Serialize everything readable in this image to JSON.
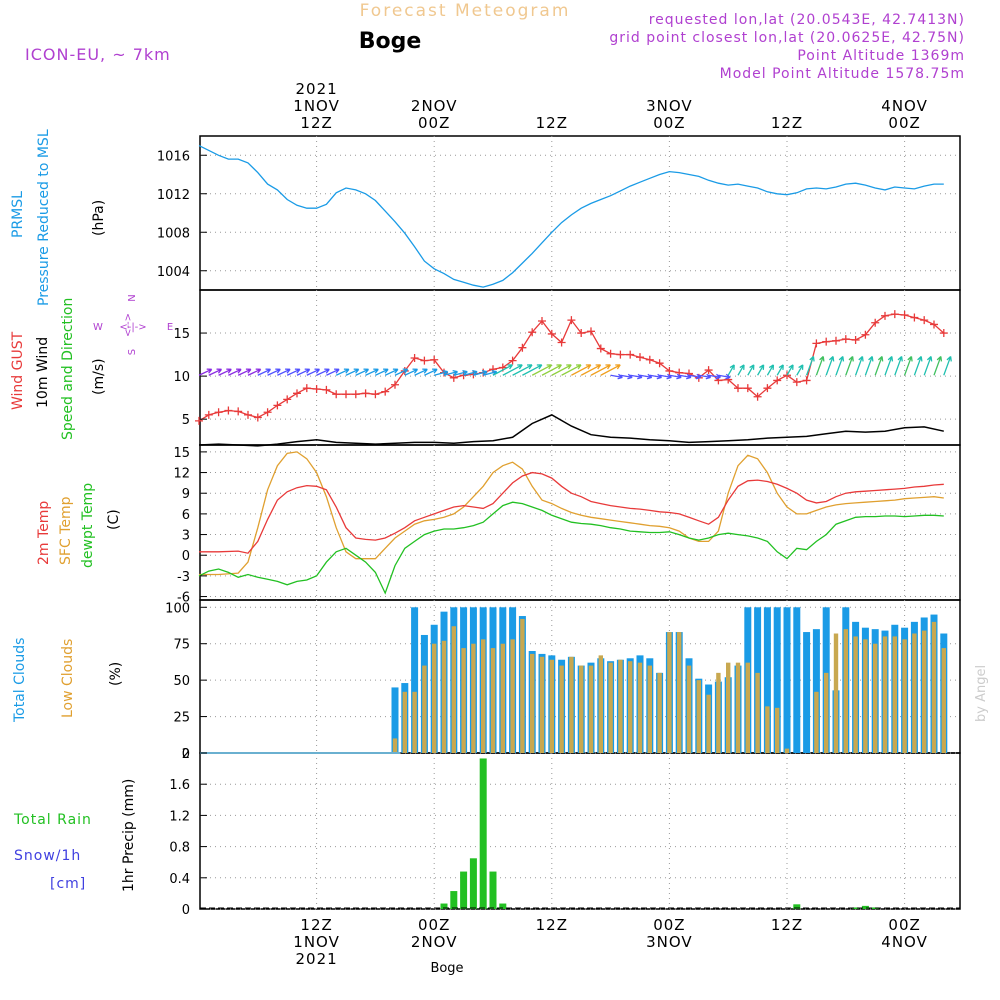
{
  "header": {
    "title": "Forecast Meteogram",
    "location": "Boge",
    "model": "ICON-EU, ~ 7km",
    "requested": "requested lon,lat (20.0543E, 42.7413N)",
    "grid_point": "grid point closest lon,lat (20.0625E, 42.75N)",
    "point_altitude": "Point Altitude 1369m",
    "model_altitude": "Model Point Altitude 1578.75m"
  },
  "footer": {
    "location": "Boge",
    "watermark": "by Angel"
  },
  "time_axis": {
    "top_labels": [
      {
        "hour": 12,
        "lines": [
          "2021",
          "1NOV",
          "12Z"
        ]
      },
      {
        "hour": 24,
        "lines": [
          "2NOV",
          "00Z"
        ]
      },
      {
        "hour": 36,
        "lines": [
          "12Z"
        ]
      },
      {
        "hour": 48,
        "lines": [
          "3NOV",
          "00Z"
        ]
      },
      {
        "hour": 60,
        "lines": [
          "12Z"
        ]
      },
      {
        "hour": 72,
        "lines": [
          "4NOV",
          "00Z"
        ]
      }
    ],
    "bottom_labels": [
      {
        "hour": 12,
        "lines": [
          "12Z",
          "1NOV",
          "2021"
        ]
      },
      {
        "hour": 24,
        "lines": [
          "00Z",
          "2NOV"
        ]
      },
      {
        "hour": 36,
        "lines": [
          "12Z"
        ]
      },
      {
        "hour": 48,
        "lines": [
          "00Z",
          "3NOV"
        ]
      },
      {
        "hour": 60,
        "lines": [
          "12Z"
        ]
      },
      {
        "hour": 72,
        "lines": [
          "00Z",
          "4NOV"
        ]
      }
    ]
  },
  "panels": {
    "pressure": {
      "label1": "PRMSL",
      "label2": "Pressure Reduced to MSL",
      "unit": "(hPa)"
    },
    "wind": {
      "label_gust": "Wind GUST",
      "label_wind": "10m Wind",
      "label_dir": "Speed and Direction",
      "unit": "(m/s)",
      "compass": {
        "n": "N",
        "s": "S",
        "w": "W",
        "e": "E"
      }
    },
    "temp": {
      "label1": "2m Temp",
      "label2": "SFC Temp",
      "label3": "dewpt Temp",
      "unit": "(C)"
    },
    "clouds": {
      "label1": "Total Clouds",
      "label2": "Low Clouds",
      "unit": "(%)"
    },
    "precip": {
      "label_rain": "Total Rain",
      "label_snow": "Snow/1h",
      "label_snow_unit": "[cm]",
      "unit": "1hr Precip (mm)"
    }
  },
  "colors": {
    "pressure": "#1a9be6",
    "gust": "#e83a3a",
    "wind": "#000000",
    "temp2m": "#e83a3a",
    "sfc": "#e0a030",
    "dewpt": "#22c022",
    "total_clouds": "#1a9be6",
    "low_clouds": "#c8a850",
    "precip": "#22c022",
    "title": "#f0c890",
    "meta": "#b040d0",
    "snow": "#4040e0"
  },
  "chart_data": [
    {
      "type": "line",
      "name": "pressure",
      "x": [
        0,
        1,
        2,
        3,
        4,
        5,
        6,
        7,
        8,
        9,
        10,
        11,
        12,
        13,
        14,
        15,
        16,
        17,
        18,
        19,
        20,
        21,
        22,
        23,
        24,
        25,
        26,
        27,
        28,
        29,
        30,
        31,
        32,
        33,
        34,
        35,
        36,
        37,
        38,
        39,
        40,
        41,
        42,
        43,
        44,
        45,
        46,
        47,
        48,
        49,
        50,
        51,
        52,
        53,
        54,
        55,
        56,
        57,
        58,
        59,
        60,
        61,
        62,
        63,
        64,
        65,
        66,
        67,
        68,
        69,
        70,
        71,
        72,
        73,
        74,
        75,
        76
      ],
      "values": [
        1017.0,
        1016.5,
        1016.0,
        1015.6,
        1015.6,
        1015.2,
        1014.2,
        1013.0,
        1012.4,
        1011.4,
        1010.8,
        1010.5,
        1010.5,
        1010.9,
        1012.1,
        1012.6,
        1012.4,
        1012.0,
        1011.3,
        1010.2,
        1009.1,
        1007.9,
        1006.5,
        1005.0,
        1004.2,
        1003.7,
        1003.1,
        1002.8,
        1002.5,
        1002.3,
        1002.6,
        1003.0,
        1003.8,
        1004.8,
        1005.8,
        1006.9,
        1008.0,
        1009.0,
        1009.8,
        1010.5,
        1011.0,
        1011.4,
        1011.8,
        1012.3,
        1012.8,
        1013.2,
        1013.6,
        1014.0,
        1014.3,
        1014.2,
        1014.0,
        1013.8,
        1013.4,
        1013.1,
        1012.9,
        1013.0,
        1012.8,
        1012.6,
        1012.2,
        1012.0,
        1011.9,
        1012.1,
        1012.5,
        1012.6,
        1012.5,
        1012.7,
        1013.0,
        1013.1,
        1012.9,
        1012.6,
        1012.4,
        1012.7,
        1012.6,
        1012.5,
        1012.8,
        1013.0,
        1013.0
      ],
      "ylim": [
        1002,
        1018
      ],
      "yticks": [
        1004,
        1008,
        1012,
        1016
      ]
    },
    {
      "type": "line",
      "name": "gust",
      "x": [
        0,
        1,
        2,
        3,
        4,
        5,
        6,
        7,
        8,
        9,
        10,
        11,
        12,
        13,
        14,
        15,
        16,
        17,
        18,
        19,
        20,
        21,
        22,
        23,
        24,
        25,
        26,
        27,
        28,
        29,
        30,
        31,
        32,
        33,
        34,
        35,
        36,
        37,
        38,
        39,
        40,
        41,
        42,
        43,
        44,
        45,
        46,
        47,
        48,
        49,
        50,
        51,
        52,
        53,
        54,
        55,
        56,
        57,
        58,
        59,
        60,
        61,
        62,
        63,
        64,
        65,
        66,
        67,
        68,
        69,
        70,
        71,
        72,
        73,
        74,
        75,
        76
      ],
      "values": [
        4.8,
        5.5,
        5.8,
        6.0,
        5.9,
        5.5,
        5.2,
        5.8,
        6.6,
        7.3,
        8.0,
        8.6,
        8.5,
        8.4,
        7.9,
        7.9,
        7.9,
        8.0,
        7.9,
        8.2,
        9.0,
        10.6,
        12.1,
        11.8,
        11.9,
        10.4,
        9.8,
        10.1,
        10.2,
        10.4,
        10.8,
        11.0,
        11.8,
        13.3,
        15.1,
        16.4,
        14.9,
        13.9,
        16.5,
        15.0,
        15.2,
        13.2,
        12.6,
        12.5,
        12.5,
        12.2,
        11.9,
        11.5,
        10.6,
        10.4,
        10.3,
        9.8,
        10.7,
        9.5,
        9.6,
        8.6,
        8.6,
        7.6,
        8.6,
        9.5,
        10.1,
        9.3,
        9.5,
        13.8,
        14.0,
        14.1,
        14.3,
        14.2,
        14.8,
        16.2,
        17.0,
        17.2,
        17.1,
        16.8,
        16.5,
        16.0,
        15.0
      ],
      "ylim": [
        2,
        20
      ],
      "yticks": [
        5,
        10,
        15
      ]
    },
    {
      "type": "line",
      "name": "wind_speed",
      "x": [
        0,
        2,
        4,
        6,
        8,
        10,
        12,
        14,
        16,
        18,
        20,
        22,
        24,
        26,
        28,
        30,
        32,
        34,
        36,
        38,
        40,
        42,
        44,
        46,
        48,
        50,
        52,
        54,
        56,
        58,
        60,
        62,
        64,
        66,
        68,
        70,
        72,
        74,
        76
      ],
      "values": [
        2.0,
        2.1,
        2.0,
        1.9,
        2.1,
        2.4,
        2.6,
        2.3,
        2.2,
        2.1,
        2.2,
        2.3,
        2.3,
        2.2,
        2.4,
        2.5,
        2.9,
        4.5,
        5.5,
        4.2,
        3.2,
        2.9,
        2.8,
        2.6,
        2.5,
        2.3,
        2.4,
        2.5,
        2.6,
        2.8,
        2.9,
        3.0,
        3.3,
        3.6,
        3.5,
        3.6,
        4.0,
        4.1,
        3.6
      ]
    },
    {
      "type": "line",
      "name": "temp2m",
      "x": [
        0,
        2,
        4,
        5,
        6,
        7,
        8,
        9,
        10,
        11,
        12,
        13,
        14,
        15,
        16,
        17,
        18,
        19,
        20,
        21,
        22,
        23,
        24,
        25,
        26,
        27,
        28,
        29,
        30,
        31,
        32,
        33,
        34,
        35,
        36,
        37,
        38,
        39,
        40,
        41,
        42,
        43,
        44,
        45,
        46,
        47,
        48,
        49,
        50,
        51,
        52,
        53,
        54,
        55,
        56,
        57,
        58,
        59,
        60,
        61,
        62,
        63,
        64,
        65,
        66,
        67,
        68,
        69,
        70,
        71,
        72,
        73,
        74,
        75,
        76
      ],
      "values": [
        0.5,
        0.5,
        0.6,
        0.3,
        2.0,
        5.2,
        8.0,
        9.2,
        9.8,
        10.1,
        10.0,
        9.5,
        7.0,
        4.0,
        2.5,
        2.3,
        2.2,
        2.5,
        3.2,
        4.0,
        5.0,
        5.5,
        6.0,
        6.5,
        7.0,
        7.2,
        7.0,
        6.8,
        7.5,
        9.0,
        10.5,
        11.5,
        12.0,
        11.8,
        11.2,
        10.0,
        9.0,
        8.5,
        7.8,
        7.5,
        7.2,
        7.0,
        6.8,
        6.7,
        6.5,
        6.3,
        6.2,
        6.0,
        5.5,
        5.0,
        4.5,
        5.5,
        8.0,
        10.0,
        10.8,
        10.9,
        10.7,
        10.3,
        9.7,
        9.0,
        8.0,
        7.6,
        7.8,
        8.5,
        9.0,
        9.2,
        9.3,
        9.4,
        9.5,
        9.6,
        9.7,
        9.9,
        10.0,
        10.2,
        10.3
      ],
      "ylim": [
        -6.5,
        16
      ],
      "yticks": [
        -6,
        -3,
        0,
        3,
        6,
        9,
        12,
        15
      ]
    },
    {
      "type": "line",
      "name": "sfc_temp",
      "x": [
        0,
        2,
        4,
        5,
        6,
        7,
        8,
        9,
        10,
        11,
        12,
        13,
        14,
        15,
        16,
        17,
        18,
        19,
        20,
        21,
        22,
        23,
        24,
        25,
        26,
        27,
        28,
        29,
        30,
        31,
        32,
        33,
        34,
        35,
        36,
        37,
        38,
        39,
        40,
        41,
        42,
        43,
        44,
        45,
        46,
        47,
        48,
        49,
        50,
        51,
        52,
        53,
        54,
        55,
        56,
        57,
        58,
        59,
        60,
        61,
        62,
        63,
        64,
        65,
        66,
        67,
        68,
        69,
        70,
        71,
        72,
        73,
        74,
        75,
        76
      ],
      "values": [
        -2.8,
        -2.8,
        -2.6,
        -1.0,
        4.0,
        9.5,
        13.0,
        14.8,
        15.0,
        14.0,
        12.0,
        8.5,
        4.0,
        0.5,
        -0.5,
        -0.5,
        -0.5,
        1.0,
        2.5,
        3.5,
        4.5,
        5.0,
        5.2,
        5.5,
        6.0,
        7.0,
        8.5,
        10.0,
        12.0,
        13.0,
        13.5,
        12.5,
        10.0,
        8.0,
        7.5,
        6.8,
        6.2,
        5.8,
        5.5,
        5.3,
        5.1,
        4.9,
        4.7,
        4.5,
        4.3,
        4.2,
        4.0,
        3.5,
        2.5,
        2.0,
        2.0,
        3.5,
        9.0,
        13.0,
        14.5,
        14.0,
        12.0,
        9.0,
        7.0,
        6.0,
        6.0,
        6.5,
        7.0,
        7.3,
        7.5,
        7.6,
        7.7,
        7.8,
        7.9,
        8.0,
        8.2,
        8.3,
        8.4,
        8.5,
        8.3
      ],
      "ylim": [
        -6.5,
        16
      ]
    },
    {
      "type": "line",
      "name": "dewpt",
      "x": [
        0,
        1,
        2,
        3,
        4,
        5,
        6,
        7,
        8,
        9,
        10,
        11,
        12,
        13,
        14,
        15,
        16,
        17,
        18,
        19,
        20,
        21,
        22,
        23,
        24,
        25,
        26,
        27,
        28,
        29,
        30,
        31,
        32,
        33,
        34,
        35,
        36,
        37,
        38,
        39,
        40,
        41,
        42,
        43,
        44,
        45,
        46,
        47,
        48,
        49,
        50,
        51,
        52,
        53,
        54,
        55,
        56,
        57,
        58,
        59,
        60,
        61,
        62,
        63,
        64,
        65,
        66,
        67,
        68,
        69,
        70,
        71,
        72,
        73,
        74,
        75,
        76
      ],
      "values": [
        -3.0,
        -2.3,
        -2.0,
        -2.5,
        -3.2,
        -2.8,
        -3.2,
        -3.5,
        -3.8,
        -4.3,
        -3.8,
        -3.6,
        -3.0,
        -1.0,
        0.5,
        1.0,
        0.0,
        -1.0,
        -2.5,
        -5.5,
        -1.5,
        1.0,
        2.0,
        3.0,
        3.5,
        3.8,
        3.8,
        4.0,
        4.3,
        4.8,
        6.0,
        7.2,
        7.7,
        7.5,
        7.0,
        6.5,
        5.8,
        5.3,
        4.8,
        4.6,
        4.5,
        4.3,
        4.0,
        3.8,
        3.5,
        3.4,
        3.3,
        3.3,
        3.4,
        3.0,
        2.5,
        2.2,
        2.5,
        3.0,
        3.2,
        3.0,
        2.8,
        2.5,
        2.0,
        0.5,
        -0.5,
        1.0,
        0.8,
        2.0,
        3.0,
        4.5,
        5.0,
        5.5,
        5.6,
        5.6,
        5.7,
        5.7,
        5.6,
        5.7,
        5.8,
        5.8,
        5.7
      ],
      "ylim": [
        -6.5,
        16
      ]
    },
    {
      "type": "bar",
      "name": "total_clouds",
      "x": [
        0,
        1,
        2,
        3,
        4,
        5,
        6,
        7,
        8,
        9,
        10,
        11,
        12,
        13,
        14,
        15,
        16,
        17,
        18,
        19,
        20,
        21,
        22,
        23,
        24,
        25,
        26,
        27,
        28,
        29,
        30,
        31,
        32,
        33,
        34,
        35,
        36,
        37,
        38,
        39,
        40,
        41,
        42,
        43,
        44,
        45,
        46,
        47,
        48,
        49,
        50,
        51,
        52,
        53,
        54,
        55,
        56,
        57,
        58,
        59,
        60,
        61,
        62,
        63,
        64,
        65,
        66,
        67,
        68,
        69,
        70,
        71,
        72,
        73,
        74,
        75,
        76
      ],
      "values": [
        0,
        0,
        0,
        0,
        0,
        0,
        0,
        0,
        0,
        0,
        0,
        0,
        0,
        0,
        0,
        0,
        0,
        0,
        0,
        0,
        45,
        48,
        100,
        81,
        88,
        97,
        100,
        100,
        100,
        100,
        100,
        100,
        100,
        94,
        70,
        68,
        67,
        64,
        66,
        60,
        62,
        65,
        63,
        64,
        65,
        67,
        65,
        55,
        83,
        83,
        65,
        51,
        47,
        49,
        52,
        60,
        100,
        100,
        100,
        100,
        100,
        100,
        83,
        85,
        100,
        43,
        100,
        90,
        86,
        85,
        84,
        88,
        86,
        90,
        93,
        95,
        82
      ],
      "ylim": [
        0,
        105
      ],
      "yticks": [
        0,
        25,
        50,
        75,
        100
      ]
    },
    {
      "type": "bar",
      "name": "low_clouds",
      "x": [
        0,
        1,
        2,
        3,
        4,
        5,
        6,
        7,
        8,
        9,
        10,
        11,
        12,
        13,
        14,
        15,
        16,
        17,
        18,
        19,
        20,
        21,
        22,
        23,
        24,
        25,
        26,
        27,
        28,
        29,
        30,
        31,
        32,
        33,
        34,
        35,
        36,
        37,
        38,
        39,
        40,
        41,
        42,
        43,
        44,
        45,
        46,
        47,
        48,
        49,
        50,
        51,
        52,
        53,
        54,
        55,
        56,
        57,
        58,
        59,
        60,
        61,
        62,
        63,
        64,
        65,
        66,
        67,
        68,
        69,
        70,
        71,
        72,
        73,
        74,
        75,
        76
      ],
      "values": [
        0,
        0,
        0,
        0,
        0,
        0,
        0,
        0,
        0,
        0,
        0,
        0,
        0,
        0,
        0,
        0,
        0,
        0,
        0,
        0,
        10,
        42,
        42,
        60,
        75,
        77,
        87,
        72,
        75,
        78,
        72,
        75,
        78,
        92,
        68,
        66,
        64,
        60,
        66,
        60,
        60,
        67,
        62,
        64,
        63,
        62,
        60,
        55,
        83,
        83,
        60,
        50,
        40,
        55,
        62,
        62,
        62,
        55,
        32,
        31,
        3,
        0,
        0,
        42,
        55,
        82,
        85,
        80,
        78,
        75,
        80,
        80,
        78,
        82,
        84,
        90,
        72
      ],
      "ylim": [
        0,
        105
      ]
    },
    {
      "type": "bar",
      "name": "precip",
      "x": [
        25,
        26,
        27,
        28,
        29,
        30,
        31,
        61,
        67,
        68,
        69
      ],
      "values": [
        0.07,
        0.23,
        0.48,
        0.65,
        1.93,
        0.48,
        0.07,
        0.06,
        0.02,
        0.04,
        0.02
      ],
      "ylim": [
        0,
        2
      ],
      "yticks": [
        0,
        0.4,
        0.8,
        1.2,
        1.6,
        2
      ],
      "ytick_labels": [
        "0",
        "0.4",
        "0.8",
        "1.2",
        "1.6",
        "2"
      ]
    }
  ]
}
